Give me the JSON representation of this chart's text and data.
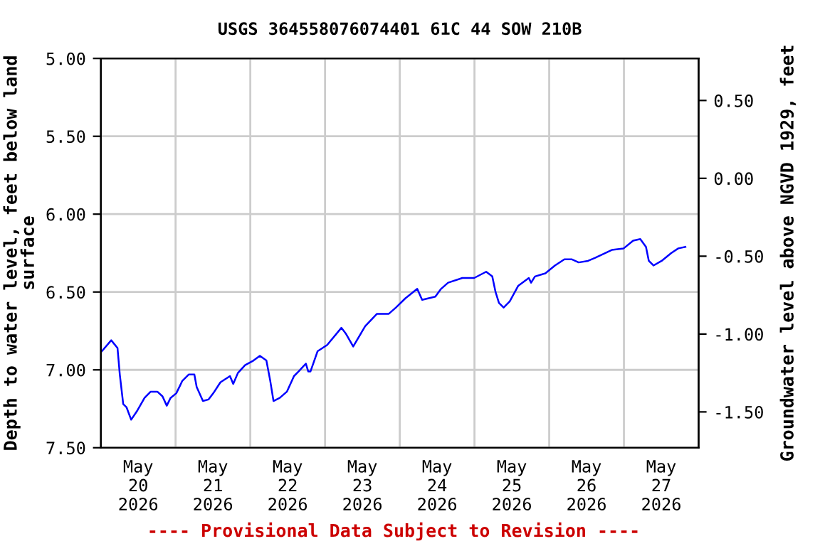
{
  "chart_data": {
    "type": "line",
    "title": "USGS 364558076074401 61C 44 SOW 210B",
    "ylabel": "Depth to water level, feet below land\nsurface",
    "y2label": "Groundwater level above NGVD 1929, feet",
    "annotations": [
      "---- Provisional Data Subject to Revision ----"
    ],
    "x": [
      "2026-05-20T00:19",
      "2026-05-20T03:20",
      "2026-05-20T05:21",
      "2026-05-20T06:05",
      "2026-05-20T07:11",
      "2026-05-20T08:14",
      "2026-05-20T09:44",
      "2026-05-20T11:45",
      "2026-05-20T14:02",
      "2026-05-20T16:00",
      "2026-05-20T18:09",
      "2026-05-20T19:48",
      "2026-05-20T21:10",
      "2026-05-20T22:24",
      "2026-05-21T00:14",
      "2026-05-21T02:11",
      "2026-05-21T04:12",
      "2026-05-21T06:02",
      "2026-05-21T06:46",
      "2026-05-21T08:47",
      "2026-05-21T10:36",
      "2026-05-21T12:07",
      "2026-05-21T14:24",
      "2026-05-21T17:28",
      "2026-05-21T18:31",
      "2026-05-21T20:01",
      "2026-05-21T22:19",
      "2026-05-22T01:03",
      "2026-05-22T03:04",
      "2026-05-22T05:10",
      "2026-05-22T06:24",
      "2026-05-22T07:27",
      "2026-05-22T09:28",
      "2026-05-22T11:45",
      "2026-05-22T14:02",
      "2026-05-22T15:32",
      "2026-05-22T17:50",
      "2026-05-22T18:36",
      "2026-05-22T19:20",
      "2026-05-22T21:37",
      "2026-05-23T00:41",
      "2026-05-23T05:15",
      "2026-05-23T06:46",
      "2026-05-23T09:03",
      "2026-05-23T12:53",
      "2026-05-23T16:41",
      "2026-05-23T20:29",
      "2026-05-23T22:46",
      "2026-05-24T01:50",
      "2026-05-24T05:37",
      "2026-05-24T07:11",
      "2026-05-24T11:26",
      "2026-05-24T13:16",
      "2026-05-24T15:32",
      "2026-05-24T20:07",
      "2026-05-24T23:55",
      "2026-05-25T03:45",
      "2026-05-25T05:43",
      "2026-05-25T06:46",
      "2026-05-25T07:52",
      "2026-05-25T09:22",
      "2026-05-25T11:20",
      "2026-05-25T14:04",
      "2026-05-25T17:27",
      "2026-05-25T18:11",
      "2026-05-25T19:26",
      "2026-05-25T22:46",
      "2026-05-26T01:50",
      "2026-05-26T04:53",
      "2026-05-26T07:11",
      "2026-05-26T09:28",
      "2026-05-26T12:29",
      "2026-05-26T14:46",
      "2026-05-26T20:07",
      "2026-05-26T23:55",
      "2026-05-27T02:58",
      "2026-05-27T05:15",
      "2026-05-27T07:05",
      "2026-05-27T08:00",
      "2026-05-27T09:30",
      "2026-05-27T12:07",
      "2026-05-27T15:11",
      "2026-05-27T17:28",
      "2026-05-27T19:45"
    ],
    "series": [
      {
        "color": "#0000ff",
        "values": [
          6.88,
          6.81,
          6.86,
          7.03,
          7.22,
          7.24,
          7.32,
          7.26,
          7.18,
          7.14,
          7.14,
          7.17,
          7.23,
          7.18,
          7.15,
          7.07,
          7.03,
          7.03,
          7.11,
          7.2,
          7.19,
          7.15,
          7.08,
          7.04,
          7.09,
          7.02,
          6.97,
          6.94,
          6.91,
          6.94,
          7.07,
          7.2,
          7.18,
          7.14,
          7.04,
          7.01,
          6.96,
          7.01,
          7.01,
          6.88,
          6.84,
          6.73,
          6.77,
          6.85,
          6.72,
          6.64,
          6.64,
          6.6,
          6.54,
          6.48,
          6.55,
          6.53,
          6.48,
          6.44,
          6.41,
          6.41,
          6.37,
          6.4,
          6.5,
          6.57,
          6.6,
          6.56,
          6.46,
          6.41,
          6.44,
          6.4,
          6.38,
          6.33,
          6.29,
          6.29,
          6.31,
          6.3,
          6.28,
          6.23,
          6.22,
          6.17,
          6.16,
          6.21,
          6.3,
          6.33,
          6.3,
          6.25,
          6.22,
          6.21
        ]
      }
    ],
    "xlim": [
      "2026-05-20T00:00",
      "2026-05-28T00:00"
    ],
    "xticks": [
      {
        "value": "2026-05-20T00:00",
        "label": null
      },
      {
        "value": "2026-05-20T12:00",
        "label": "May\n20\n2026"
      },
      {
        "value": "2026-05-21T00:00",
        "label": null
      },
      {
        "value": "2026-05-21T12:00",
        "label": "May\n21\n2026"
      },
      {
        "value": "2026-05-22T00:00",
        "label": null
      },
      {
        "value": "2026-05-22T12:00",
        "label": "May\n22\n2026"
      },
      {
        "value": "2026-05-23T00:00",
        "label": null
      },
      {
        "value": "2026-05-23T12:00",
        "label": "May\n23\n2026"
      },
      {
        "value": "2026-05-24T00:00",
        "label": null
      },
      {
        "value": "2026-05-24T12:00",
        "label": "May\n24\n2026"
      },
      {
        "value": "2026-05-25T00:00",
        "label": null
      },
      {
        "value": "2026-05-25T12:00",
        "label": "May\n25\n2026"
      },
      {
        "value": "2026-05-26T00:00",
        "label": null
      },
      {
        "value": "2026-05-26T12:00",
        "label": "May\n26\n2026"
      },
      {
        "value": "2026-05-27T00:00",
        "label": null
      },
      {
        "value": "2026-05-27T12:00",
        "label": "May\n27\n2026"
      },
      {
        "value": "2026-05-28T00:00",
        "label": null
      }
    ],
    "ylim": [
      7.5,
      5.0
    ],
    "yticks": [
      {
        "value": 5.0,
        "label": "5.00"
      },
      {
        "value": 5.5,
        "label": "5.50"
      },
      {
        "value": 6.0,
        "label": "6.00"
      },
      {
        "value": 6.5,
        "label": "6.50"
      },
      {
        "value": 7.0,
        "label": "7.00"
      },
      {
        "value": 7.5,
        "label": "7.50"
      }
    ],
    "y2lim": [
      -1.73,
      0.77
    ],
    "y2ticks": [
      {
        "value": 0.5,
        "label": "0.50"
      },
      {
        "value": 0.0,
        "label": "0.00"
      },
      {
        "value": -0.5,
        "label": "-0.50"
      },
      {
        "value": -1.0,
        "label": "-1.00"
      },
      {
        "value": -1.5,
        "label": "-1.50"
      }
    ],
    "grid": true,
    "legend": false,
    "marker": "none",
    "line_style": "solid"
  }
}
